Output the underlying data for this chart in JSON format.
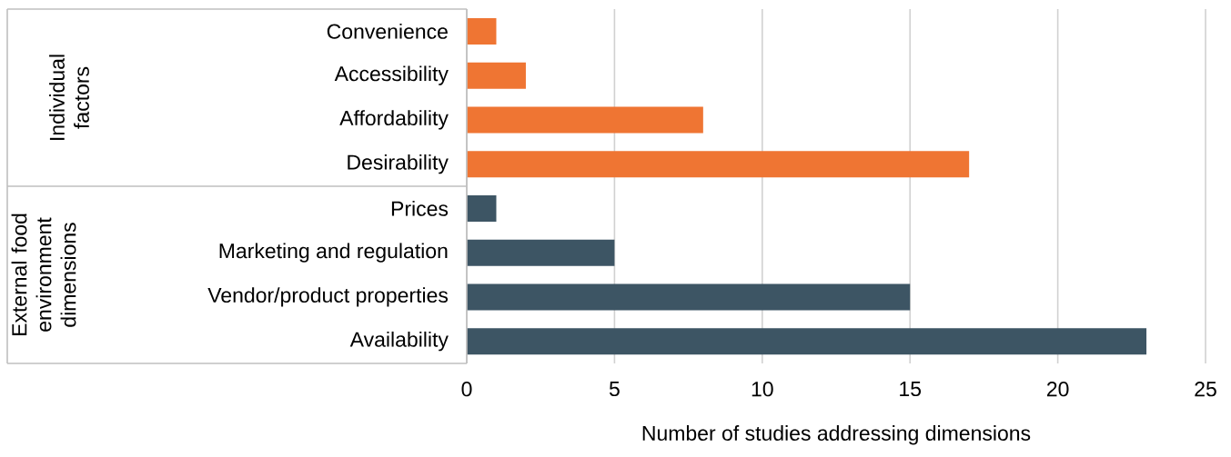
{
  "chart_data": {
    "type": "bar",
    "orientation": "horizontal",
    "categories": [
      "Convenience",
      "Accessibility",
      "Affordability",
      "Desirability",
      "Prices",
      "Marketing and regulation",
      "Vendor/product properties",
      "Availability"
    ],
    "values": [
      1,
      2,
      8,
      17,
      1,
      5,
      15,
      23
    ],
    "colors": [
      "#ef7533",
      "#ef7533",
      "#ef7533",
      "#ef7533",
      "#3d5564",
      "#3d5564",
      "#3d5564",
      "#3d5564"
    ],
    "xlim": [
      0,
      25
    ],
    "xticks": [
      0,
      5,
      10,
      15,
      20,
      25
    ],
    "xlabel": "Number of studies addressing dimensions",
    "grid": "x",
    "annotations": [
      "Individual factors",
      "External food environment dimensions"
    ]
  }
}
